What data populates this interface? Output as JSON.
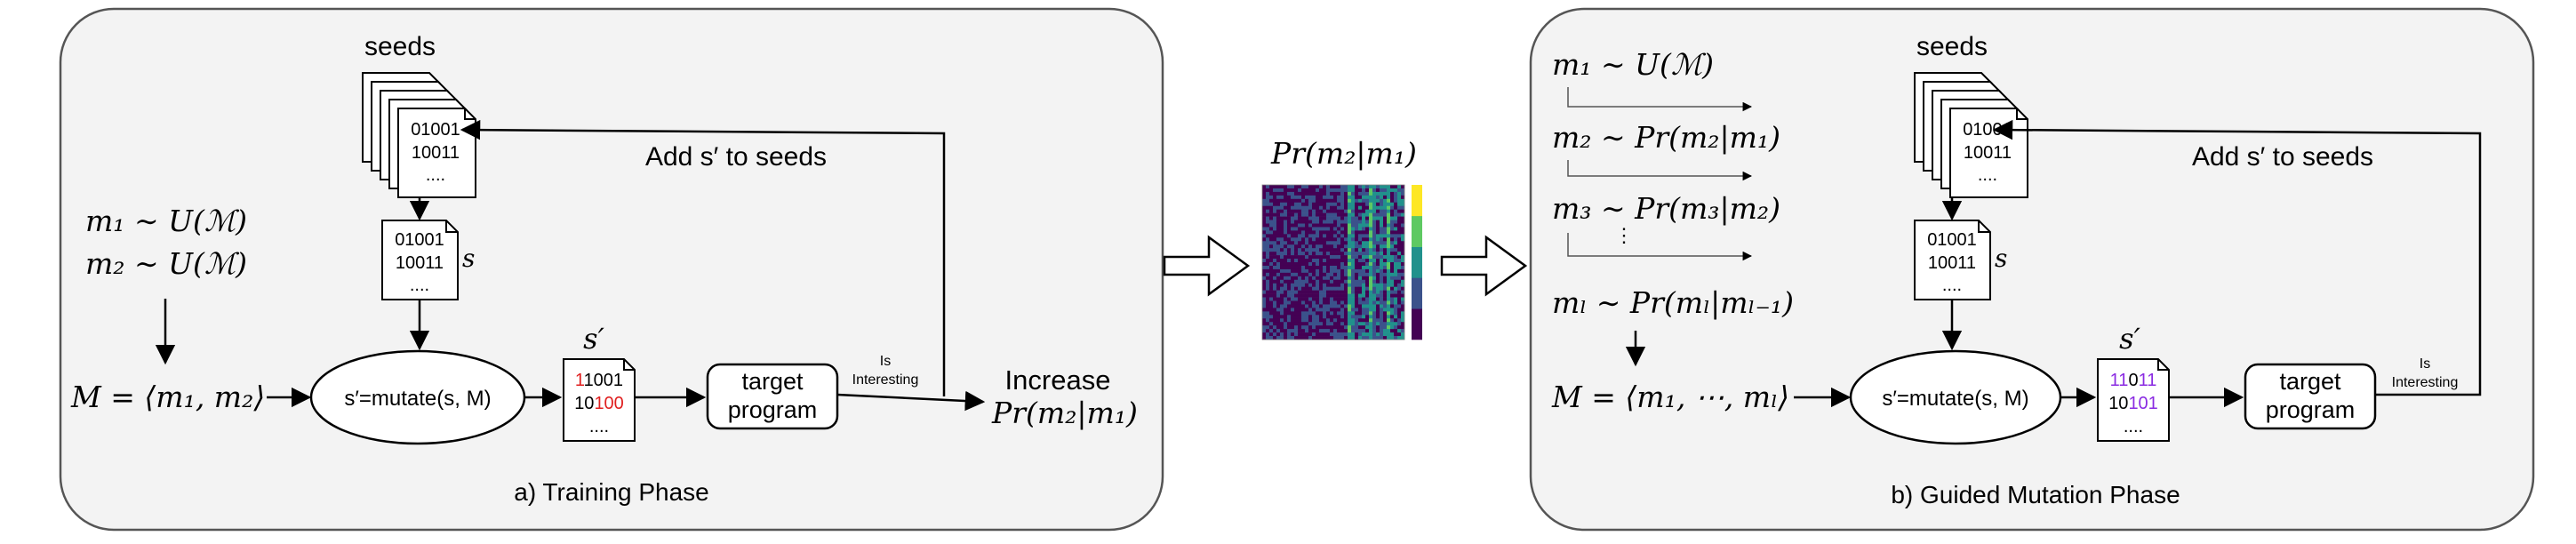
{
  "training_panel": {
    "caption": "a) Training Phase",
    "seeds_label": "seeds",
    "seed_line1": "01001",
    "seed_line2": "10011",
    "seed_line3": "....",
    "s_line1": "01001",
    "s_line2": "10011",
    "s_line3": "....",
    "s_label": "s",
    "s_prime_label": "s′",
    "sp_line1_red": "1",
    "sp_line1_rest": "1001",
    "sp_line2_black": "10",
    "sp_line2_red": "100",
    "sp_line3": "....",
    "add_to_seeds": "Add s′ to seeds",
    "m1_dist": "m₁ ∼ U(ℳ)",
    "m2_dist": "m₂ ∼ U(ℳ)",
    "M_def": "M = ⟨m₁, m₂⟩",
    "mutate": "s′=mutate(s, M)",
    "target_line1": "target",
    "target_line2": "program",
    "is_line1": "Is",
    "is_line2": "Interesting",
    "increase": "Increase",
    "increase_prob": "Pr(m₂|m₁)"
  },
  "middle": {
    "prob_label": "Pr(m₂|m₁)",
    "heatmap": {
      "colors": [
        "#440154",
        "#3b528b",
        "#21918c",
        "#5ec962",
        "#fde725"
      ]
    }
  },
  "guided_panel": {
    "caption": "b) Guided Mutation Phase",
    "seeds_label": "seeds",
    "seed_line1": "01001",
    "seed_line2": "10011",
    "seed_line3": "....",
    "s_line1": "01001",
    "s_line2": "10011",
    "s_line3": "....",
    "s_label": "s",
    "s_prime_label": "s′",
    "sp_line1_purple": "11",
    "sp_line1_black": "0",
    "sp_line1_purple2": "11",
    "sp_line2_black": "10",
    "sp_line2_purple": "101",
    "sp_line3": "....",
    "add_to_seeds": "Add s′ to seeds",
    "m1_dist": "m₁ ∼ U(ℳ)",
    "m2_dist": "m₂ ∼ Pr(m₂|m₁)",
    "m3_dist": "m₃ ∼ Pr(m₃|m₂)",
    "vdots": "⋮",
    "ml_dist": "mₗ ∼ Pr(mₗ|mₗ₋₁)",
    "M_def": "M = ⟨m₁, ⋯, mₗ⟩",
    "mutate": "s′=mutate(s, M)",
    "target_line1": "target",
    "target_line2": "program",
    "is_line1": "Is",
    "is_line2": "Interesting"
  }
}
